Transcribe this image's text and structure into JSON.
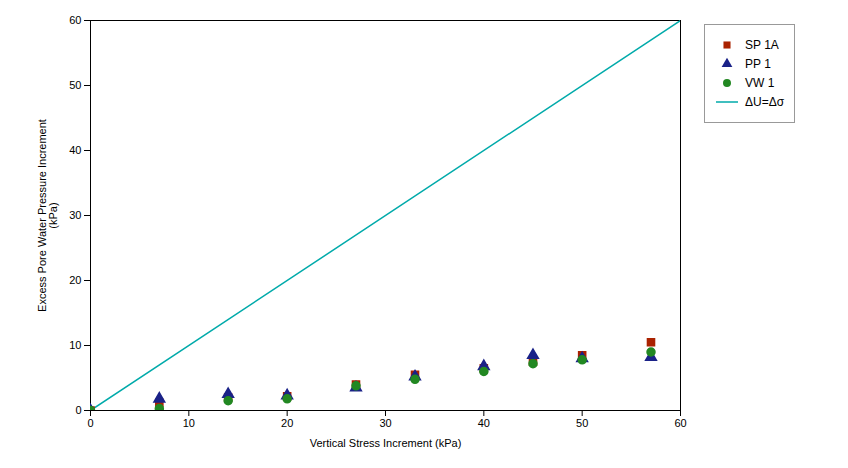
{
  "chart_data": {
    "type": "scatter",
    "xlabel": "Vertical Stress Increment (kPa)",
    "ylabel": "Excess Pore Water Pressure Increment\n(kPa)",
    "xlim": [
      0,
      60
    ],
    "ylim": [
      0,
      60
    ],
    "xticks": [
      0,
      10,
      20,
      30,
      40,
      50,
      60
    ],
    "yticks": [
      0,
      10,
      20,
      30,
      40,
      50,
      60
    ],
    "grid": false,
    "legend": "right",
    "series": [
      {
        "name": "SP 1A",
        "type": "scatter",
        "marker": "square",
        "color": "#AA2200",
        "x": [
          0,
          7,
          14,
          20,
          27,
          33,
          40,
          45,
          50,
          57
        ],
        "values": [
          0,
          1.2,
          2.0,
          2.2,
          4.0,
          5.5,
          6.5,
          7.5,
          8.5,
          10.5
        ]
      },
      {
        "name": "PP 1",
        "type": "scatter",
        "marker": "triangle",
        "color": "#1A2288",
        "x": [
          0,
          7,
          14,
          20,
          27,
          33,
          40,
          45,
          50,
          57
        ],
        "values": [
          0,
          1.8,
          2.5,
          2.3,
          3.5,
          5.2,
          6.8,
          8.5,
          8.0,
          8.2
        ]
      },
      {
        "name": "VW 1",
        "type": "scatter",
        "marker": "circle",
        "color": "#228822",
        "x": [
          0,
          7,
          14,
          20,
          27,
          33,
          40,
          45,
          50,
          57
        ],
        "values": [
          0,
          0.3,
          1.5,
          1.8,
          3.8,
          4.8,
          6.0,
          7.2,
          7.8,
          9.0
        ]
      },
      {
        "name": "ΔU=Δσ",
        "type": "line",
        "line_style": "solid",
        "color": "#00AAAA",
        "x": [
          0,
          60
        ],
        "values": [
          0,
          60
        ]
      }
    ]
  }
}
